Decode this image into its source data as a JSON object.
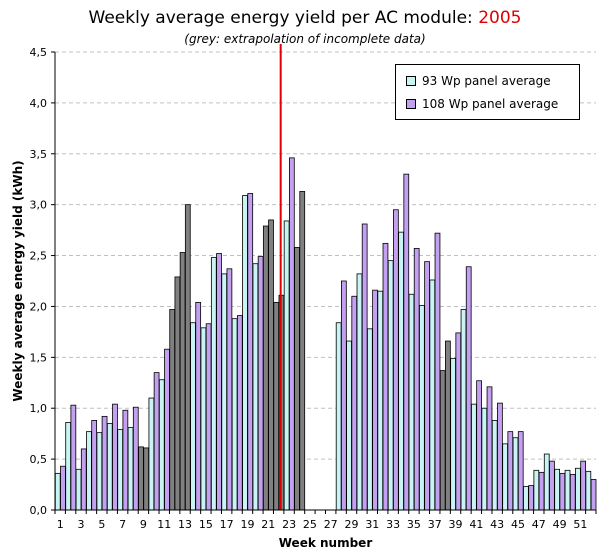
{
  "title_main": "Weekly average energy yield per AC module:",
  "title_year": "2005",
  "subtitle": "(grey: extrapolation of incomplete data)",
  "colors": {
    "series_93": "#c8f4f4",
    "series_108": "#c4a0f0",
    "extrapolated": "#808080",
    "marker": "#e00000",
    "grid": "#c0c0c0"
  },
  "chart_data": {
    "type": "bar",
    "xlabel": "Week number",
    "ylabel": "Weekly average energy yield (kWh)",
    "ylim": [
      0,
      4.5
    ],
    "yticks": [
      "0,0",
      "0,5",
      "1,0",
      "1,5",
      "2,0",
      "2,5",
      "3,0",
      "3,5",
      "4,0",
      "4,5"
    ],
    "xtick_labels": [
      "1",
      "3",
      "5",
      "7",
      "9",
      "11",
      "13",
      "15",
      "17",
      "19",
      "21",
      "23",
      "25",
      "27",
      "29",
      "31",
      "33",
      "35",
      "37",
      "39",
      "41",
      "43",
      "45",
      "47",
      "49",
      "51"
    ],
    "grid": "horizontal dashed",
    "legend_position": "top-right",
    "marker_week": 22,
    "categories": [
      1,
      2,
      3,
      4,
      5,
      6,
      7,
      8,
      9,
      10,
      11,
      12,
      13,
      14,
      15,
      16,
      17,
      18,
      19,
      20,
      21,
      22,
      23,
      24,
      25,
      26,
      27,
      28,
      29,
      30,
      31,
      32,
      33,
      34,
      35,
      36,
      37,
      38,
      39,
      40,
      41,
      42,
      43,
      44,
      45,
      46,
      47,
      48,
      49,
      50,
      51,
      52
    ],
    "series": [
      {
        "name": "93 Wp panel average",
        "values": [
          0.36,
          0.86,
          0.4,
          0.77,
          0.76,
          0.85,
          0.79,
          0.81,
          0.62,
          1.1,
          1.28,
          1.97,
          2.53,
          1.84,
          1.79,
          2.48,
          2.32,
          1.88,
          3.09,
          2.42,
          2.79,
          2.04,
          2.84,
          2.58,
          null,
          null,
          null,
          1.84,
          1.66,
          2.32,
          1.78,
          2.15,
          2.45,
          2.73,
          2.12,
          2.01,
          2.26,
          1.37,
          1.49,
          1.97,
          1.04,
          1.0,
          0.88,
          0.65,
          0.71,
          0.23,
          0.39,
          0.55,
          0.4,
          0.39,
          0.41,
          0.38
        ]
      },
      {
        "name": "108 Wp panel average",
        "values": [
          0.43,
          1.03,
          0.6,
          0.88,
          0.92,
          1.04,
          0.98,
          1.01,
          0.61,
          1.35,
          1.58,
          2.29,
          3.0,
          2.04,
          1.83,
          2.52,
          2.37,
          1.91,
          3.11,
          2.49,
          2.85,
          2.11,
          3.46,
          3.13,
          null,
          null,
          null,
          2.25,
          2.1,
          2.81,
          2.16,
          2.62,
          2.95,
          3.3,
          2.57,
          2.44,
          2.72,
          1.66,
          1.74,
          2.39,
          1.27,
          1.21,
          1.05,
          0.77,
          0.77,
          0.24,
          0.37,
          0.48,
          0.36,
          0.35,
          0.48,
          0.3
        ]
      }
    ],
    "extrapolated": {
      "93 Wp panel average": [
        9,
        12,
        13,
        21,
        22,
        24,
        38
      ],
      "108 Wp panel average": [
        9,
        12,
        13,
        21,
        22,
        24,
        38
      ]
    }
  }
}
